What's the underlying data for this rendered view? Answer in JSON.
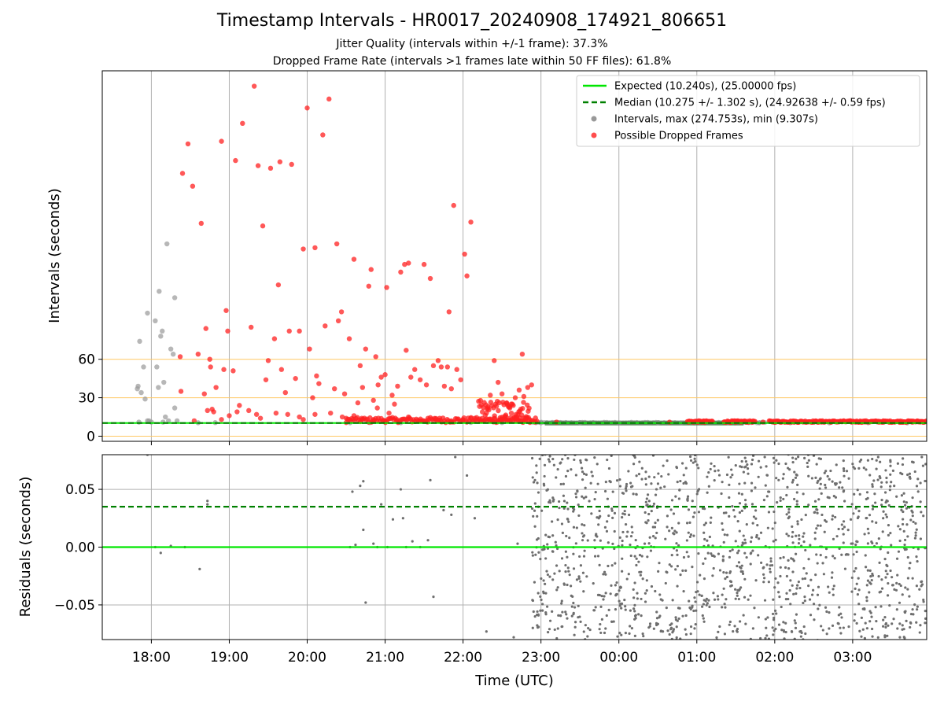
{
  "chart_data": [
    {
      "type": "scatter",
      "title": "Timestamp Intervals - HR0017_20240908_174921_806651",
      "subtitle_lines": [
        "Jitter Quality (intervals within +/-1 frame): 37.3%",
        "Dropped Frame Rate (intervals >1 frames late within 50 FF files): 61.8%"
      ],
      "xlabel": "",
      "ylabel": "Intervals (seconds)",
      "x_range_hours": [
        17.37,
        27.95
      ],
      "x_tick_labels": [
        "18:00",
        "19:00",
        "20:00",
        "21:00",
        "22:00",
        "23:00",
        "00:00",
        "01:00",
        "02:00",
        "03:00"
      ],
      "ylim": [
        -4,
        285
      ],
      "y_ticks": [
        0,
        30,
        60
      ],
      "threshold_lines": [
        0,
        30,
        60
      ],
      "threshold_color": "#FFC864",
      "grid": "x",
      "legend_position": "upper right",
      "colors": {
        "expected": "#00E600",
        "median": "#008000",
        "intervals": "#999999",
        "dropped": "#FF2020"
      },
      "legend": [
        "Expected (10.240s), (25.00000 fps)",
        "Median (10.275 +/- 1.302 s), (24.92638 +/- 0.59 fps)",
        "Intervals, max (274.753s), min (9.307s)",
        "Possible Dropped Frames"
      ],
      "expected_value": 10.24,
      "median_value": 10.275,
      "intervals_gray": [
        [
          17.82,
          37
        ],
        [
          17.83,
          39
        ],
        [
          17.85,
          74
        ],
        [
          17.87,
          34
        ],
        [
          17.9,
          54
        ],
        [
          17.92,
          29
        ],
        [
          17.95,
          96
        ],
        [
          17.97,
          12
        ],
        [
          18.0,
          11
        ],
        [
          18.05,
          90
        ],
        [
          18.07,
          54
        ],
        [
          18.09,
          38
        ],
        [
          18.1,
          113
        ],
        [
          18.12,
          78
        ],
        [
          18.14,
          82
        ],
        [
          18.16,
          42
        ],
        [
          18.18,
          15
        ],
        [
          18.2,
          150
        ],
        [
          18.22,
          12
        ],
        [
          18.25,
          68
        ],
        [
          18.28,
          64
        ],
        [
          18.3,
          108
        ],
        [
          18.3,
          22
        ],
        [
          18.33,
          12
        ],
        [
          17.84,
          11
        ],
        [
          17.95,
          12
        ],
        [
          18.15,
          11
        ],
        [
          18.6,
          10.5
        ],
        [
          18.82,
          10.6
        ],
        [
          20.55,
          10.5
        ],
        [
          20.8,
          10.6
        ],
        [
          21.2,
          10.5
        ],
        [
          22.1,
          10.7
        ],
        [
          22.5,
          10.6
        ],
        [
          23.0,
          10.4
        ],
        [
          23.5,
          10.5
        ],
        [
          24.0,
          10.4
        ],
        [
          24.5,
          10.5
        ],
        [
          24.8,
          10.4
        ],
        [
          25.4,
          10.5
        ],
        [
          25.8,
          10.4
        ],
        [
          26.2,
          10.5
        ],
        [
          26.7,
          10.4
        ],
        [
          27.2,
          10.5
        ],
        [
          27.7,
          10.4
        ]
      ],
      "dropped_frames": [
        [
          18.37,
          62
        ],
        [
          18.38,
          35
        ],
        [
          18.4,
          205
        ],
        [
          18.47,
          228
        ],
        [
          18.53,
          195
        ],
        [
          18.6,
          64
        ],
        [
          18.64,
          166
        ],
        [
          18.68,
          33
        ],
        [
          18.7,
          84
        ],
        [
          18.75,
          60
        ],
        [
          18.76,
          54
        ],
        [
          18.78,
          21
        ],
        [
          18.83,
          38
        ],
        [
          18.9,
          230
        ],
        [
          18.93,
          52
        ],
        [
          18.96,
          98
        ],
        [
          18.98,
          82
        ],
        [
          19.05,
          51
        ],
        [
          19.08,
          215
        ],
        [
          19.13,
          24
        ],
        [
          19.17,
          244
        ],
        [
          19.25,
          20
        ],
        [
          19.28,
          85
        ],
        [
          19.32,
          273
        ],
        [
          19.37,
          211
        ],
        [
          19.43,
          164
        ],
        [
          19.47,
          44
        ],
        [
          19.5,
          59
        ],
        [
          19.53,
          209
        ],
        [
          19.58,
          76
        ],
        [
          19.63,
          118
        ],
        [
          19.65,
          214
        ],
        [
          19.67,
          52
        ],
        [
          19.72,
          34
        ],
        [
          19.77,
          82
        ],
        [
          19.8,
          212
        ],
        [
          19.85,
          45
        ],
        [
          19.9,
          82
        ],
        [
          19.95,
          146
        ],
        [
          20.0,
          256
        ],
        [
          20.03,
          68
        ],
        [
          20.07,
          30
        ],
        [
          20.1,
          147
        ],
        [
          20.12,
          47
        ],
        [
          20.15,
          41
        ],
        [
          20.2,
          235
        ],
        [
          20.23,
          86
        ],
        [
          20.28,
          263
        ],
        [
          20.35,
          37
        ],
        [
          20.38,
          150
        ],
        [
          20.4,
          90
        ],
        [
          20.44,
          97
        ],
        [
          20.48,
          33
        ],
        [
          20.54,
          76
        ],
        [
          20.6,
          138
        ],
        [
          20.65,
          26
        ],
        [
          20.68,
          55
        ],
        [
          20.71,
          38
        ],
        [
          20.75,
          68
        ],
        [
          20.79,
          117
        ],
        [
          20.82,
          130
        ],
        [
          20.85,
          28
        ],
        [
          20.88,
          62
        ],
        [
          20.91,
          40
        ],
        [
          20.95,
          46
        ],
        [
          21.0,
          48
        ],
        [
          21.02,
          116
        ],
        [
          21.05,
          18
        ],
        [
          21.09,
          32
        ],
        [
          21.12,
          25
        ],
        [
          21.16,
          39
        ],
        [
          21.2,
          128
        ],
        [
          21.25,
          134
        ],
        [
          21.27,
          67
        ],
        [
          21.3,
          135
        ],
        [
          21.33,
          46
        ],
        [
          21.38,
          52
        ],
        [
          21.45,
          44
        ],
        [
          21.5,
          134
        ],
        [
          21.53,
          40
        ],
        [
          21.58,
          123
        ],
        [
          21.62,
          55
        ],
        [
          21.68,
          59
        ],
        [
          21.72,
          54
        ],
        [
          21.76,
          39
        ],
        [
          21.8,
          54
        ],
        [
          21.82,
          97
        ],
        [
          21.85,
          37
        ],
        [
          21.88,
          180
        ],
        [
          21.92,
          52
        ],
        [
          21.97,
          44
        ],
        [
          22.02,
          142
        ],
        [
          22.05,
          125
        ],
        [
          22.1,
          167
        ],
        [
          22.2,
          13
        ],
        [
          22.32,
          23
        ],
        [
          22.35,
          32
        ],
        [
          22.4,
          59
        ],
        [
          22.45,
          42
        ],
        [
          22.5,
          33
        ],
        [
          22.56,
          26
        ],
        [
          22.62,
          18
        ],
        [
          22.67,
          30
        ],
        [
          22.72,
          36
        ],
        [
          22.76,
          64
        ],
        [
          22.78,
          31
        ],
        [
          22.83,
          38
        ],
        [
          22.88,
          40
        ],
        [
          22.93,
          11
        ],
        [
          18.72,
          20
        ],
        [
          18.8,
          19
        ],
        [
          19.0,
          16
        ],
        [
          19.1,
          19
        ],
        [
          19.35,
          17
        ],
        [
          19.6,
          18
        ],
        [
          19.75,
          17
        ],
        [
          19.9,
          15
        ],
        [
          20.1,
          17
        ],
        [
          20.3,
          18
        ],
        [
          20.45,
          15
        ],
        [
          20.6,
          16
        ],
        [
          20.7,
          14
        ],
        [
          20.85,
          13
        ],
        [
          20.9,
          22
        ],
        [
          21.0,
          12
        ],
        [
          21.3,
          15
        ],
        [
          21.45,
          12
        ],
        [
          21.55,
          14
        ],
        [
          21.7,
          14
        ],
        [
          21.85,
          12
        ],
        [
          22.0,
          13
        ],
        [
          22.15,
          14
        ],
        [
          22.25,
          12
        ],
        [
          22.3,
          18
        ],
        [
          22.4,
          14
        ],
        [
          22.55,
          15
        ],
        [
          22.6,
          22
        ],
        [
          22.68,
          17
        ],
        [
          22.74,
          21
        ],
        [
          22.8,
          14
        ],
        [
          18.55,
          12
        ],
        [
          18.9,
          13
        ],
        [
          19.4,
          14
        ],
        [
          19.95,
          13
        ],
        [
          20.5,
          14
        ],
        [
          21.15,
          13
        ],
        [
          21.65,
          13
        ],
        [
          22.1,
          14
        ],
        [
          22.45,
          12
        ],
        [
          22.85,
          13
        ],
        [
          23.2,
          11
        ],
        [
          24.65,
          11
        ],
        [
          24.9,
          11.5
        ],
        [
          25.1,
          10.8
        ],
        [
          25.5,
          10.8
        ],
        [
          25.85,
          11
        ],
        [
          26.0,
          11.5
        ],
        [
          26.3,
          10.8
        ],
        [
          26.6,
          11
        ],
        [
          26.85,
          11.5
        ],
        [
          27.1,
          11.2
        ],
        [
          27.4,
          11
        ],
        [
          27.7,
          11.5
        ],
        [
          27.9,
          11
        ]
      ],
      "dense_segments": [
        [
          24.88,
          25.2
        ],
        [
          25.35,
          25.75
        ],
        [
          25.93,
          27.95
        ]
      ]
    },
    {
      "type": "scatter",
      "xlabel": "Time (UTC)",
      "ylabel": "Residuals (seconds)",
      "x_tick_labels": [
        "18:00",
        "19:00",
        "20:00",
        "21:00",
        "22:00",
        "23:00",
        "00:00",
        "01:00",
        "02:00",
        "03:00"
      ],
      "ylim": [
        -0.08,
        0.08
      ],
      "y_ticks": [
        -0.05,
        0.0,
        0.05
      ],
      "y_tick_labels": [
        "−0.05",
        "0.00",
        "0.05"
      ],
      "expected_residual": 0.0,
      "median_residual": 0.035,
      "grid": "both",
      "sparse_points": [
        [
          17.95,
          0.08
        ],
        [
          18.05,
          0.0
        ],
        [
          18.12,
          -0.005
        ],
        [
          18.25,
          0.001
        ],
        [
          18.43,
          0.0
        ],
        [
          18.62,
          -0.019
        ],
        [
          18.72,
          0.04
        ],
        [
          18.72,
          0.037
        ],
        [
          20.55,
          0.0
        ],
        [
          20.58,
          0.048
        ],
        [
          20.62,
          0.002
        ],
        [
          20.68,
          0.053
        ],
        [
          20.72,
          0.057
        ],
        [
          20.72,
          0.015
        ],
        [
          20.75,
          -0.048
        ],
        [
          20.85,
          0.003
        ],
        [
          20.9,
          0.0
        ],
        [
          20.95,
          0.037
        ],
        [
          21.03,
          0.0
        ],
        [
          21.1,
          0.024
        ],
        [
          21.2,
          0.05
        ],
        [
          21.23,
          0.025
        ],
        [
          21.27,
          0.0
        ],
        [
          21.35,
          0.005
        ],
        [
          21.45,
          0.0
        ],
        [
          21.55,
          0.006
        ],
        [
          21.58,
          0.058
        ],
        [
          21.62,
          -0.043
        ],
        [
          21.75,
          0.032
        ],
        [
          21.85,
          0.028
        ],
        [
          21.9,
          0.078
        ],
        [
          22.05,
          0.062
        ],
        [
          22.15,
          0.025
        ],
        [
          22.3,
          -0.073
        ],
        [
          22.65,
          -0.078
        ],
        [
          22.7,
          0.003
        ]
      ],
      "dense_range": [
        22.88,
        27.95
      ]
    }
  ]
}
